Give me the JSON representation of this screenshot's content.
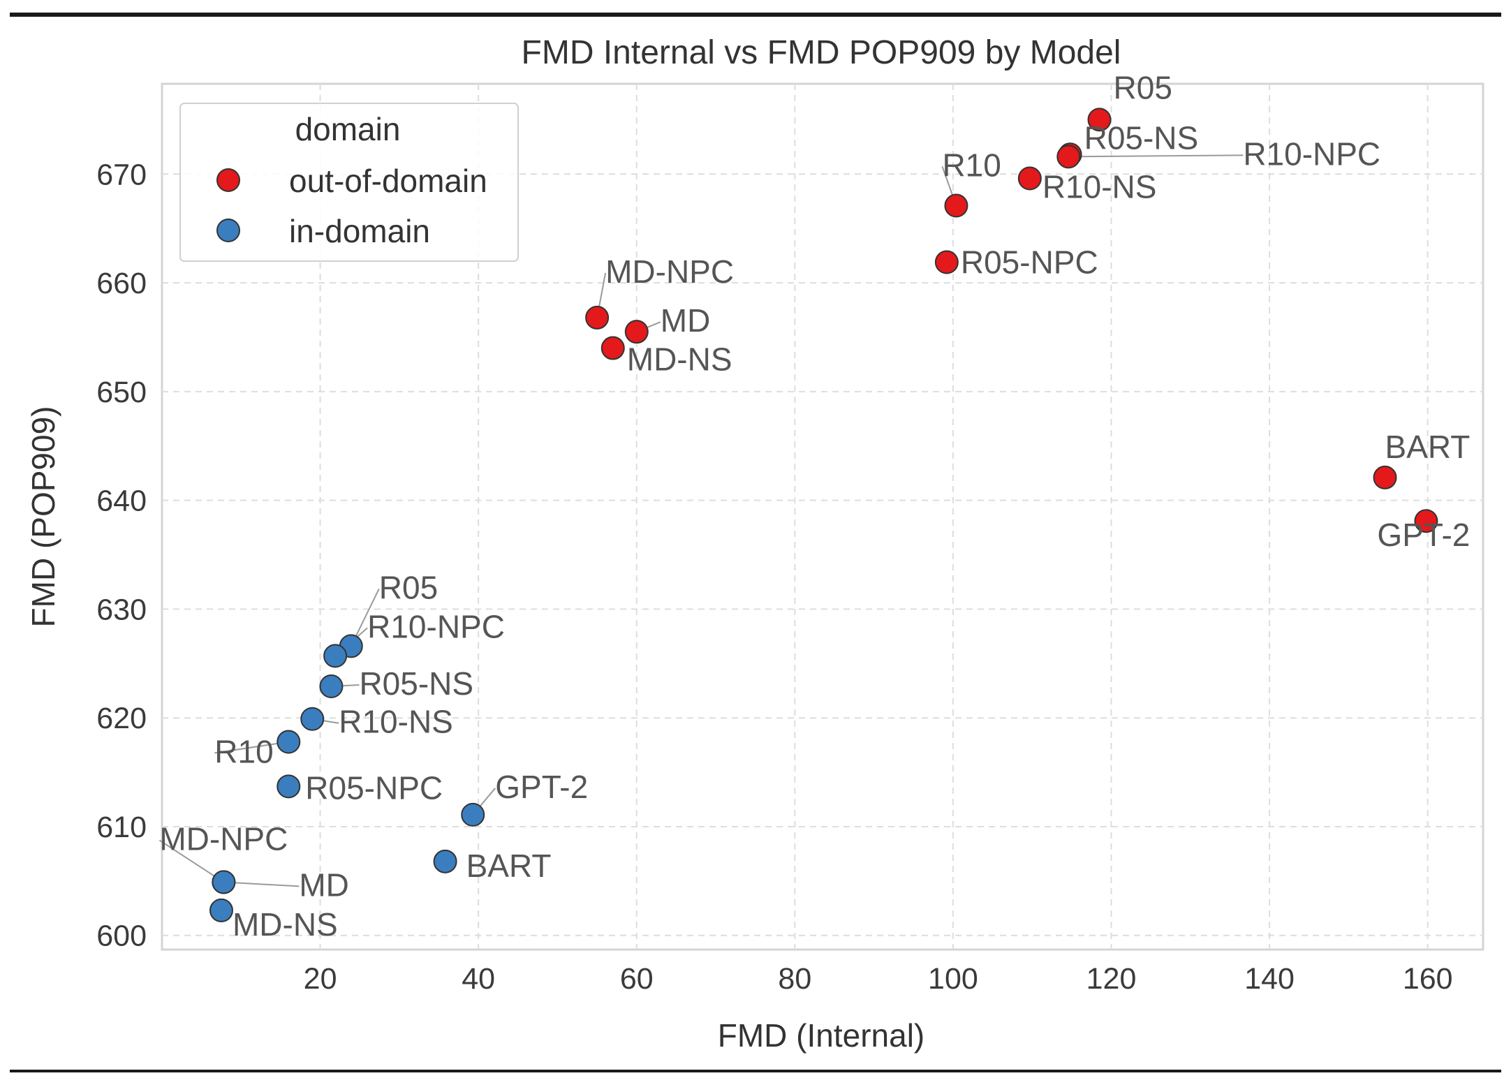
{
  "chart_data": {
    "type": "scatter",
    "title": "FMD Internal vs FMD POP909 by Model",
    "xlabel": "FMD (Internal)",
    "ylabel": "FMD (POP909)",
    "xlim": [
      0,
      167
    ],
    "ylim": [
      598.7,
      678.3
    ],
    "xticks": [
      20,
      40,
      60,
      80,
      100,
      120,
      140,
      160
    ],
    "yticks": [
      600,
      610,
      620,
      630,
      640,
      650,
      660,
      670
    ],
    "grid": true,
    "legend": {
      "title": "domain",
      "placement": "top-left",
      "entries": [
        {
          "label": "out-of-domain",
          "color": "#e3191b"
        },
        {
          "label": "in-domain",
          "color": "#3a7ebf"
        }
      ]
    },
    "series": [
      {
        "name": "out-of-domain",
        "color": "#e3191b",
        "points": [
          {
            "label": "R05",
            "x": 118.5,
            "y": 675.0
          },
          {
            "label": "R05-NS",
            "x": 114.8,
            "y": 671.8
          },
          {
            "label": "R10-NPC",
            "x": 114.6,
            "y": 671.6
          },
          {
            "label": "R10-NS",
            "x": 109.7,
            "y": 669.6
          },
          {
            "label": "R10",
            "x": 100.4,
            "y": 667.1
          },
          {
            "label": "R05-NPC",
            "x": 99.2,
            "y": 661.9
          },
          {
            "label": "MD-NPC",
            "x": 55.0,
            "y": 656.8
          },
          {
            "label": "MD",
            "x": 60.0,
            "y": 655.5
          },
          {
            "label": "MD-NS",
            "x": 57.0,
            "y": 654.0
          },
          {
            "label": "BART",
            "x": 154.6,
            "y": 642.1
          },
          {
            "label": "GPT-2",
            "x": 159.8,
            "y": 638.1
          }
        ]
      },
      {
        "name": "in-domain",
        "color": "#3a7ebf",
        "points": [
          {
            "label": "R05",
            "x": 23.9,
            "y": 626.6
          },
          {
            "label": "R10-NPC",
            "x": 21.9,
            "y": 625.7
          },
          {
            "label": "R05-NS",
            "x": 21.4,
            "y": 622.9
          },
          {
            "label": "R10-NS",
            "x": 19.0,
            "y": 619.9
          },
          {
            "label": "R10",
            "x": 16.0,
            "y": 617.8
          },
          {
            "label": "R05-NPC",
            "x": 16.0,
            "y": 613.7
          },
          {
            "label": "GPT-2",
            "x": 39.3,
            "y": 611.1
          },
          {
            "label": "BART",
            "x": 35.8,
            "y": 606.8
          },
          {
            "label": "MD-NPC",
            "x": 7.8,
            "y": 604.9
          },
          {
            "label": "MD",
            "x": 7.8,
            "y": 604.9
          },
          {
            "label": "MD-NS",
            "x": 7.5,
            "y": 602.3
          }
        ]
      }
    ]
  }
}
